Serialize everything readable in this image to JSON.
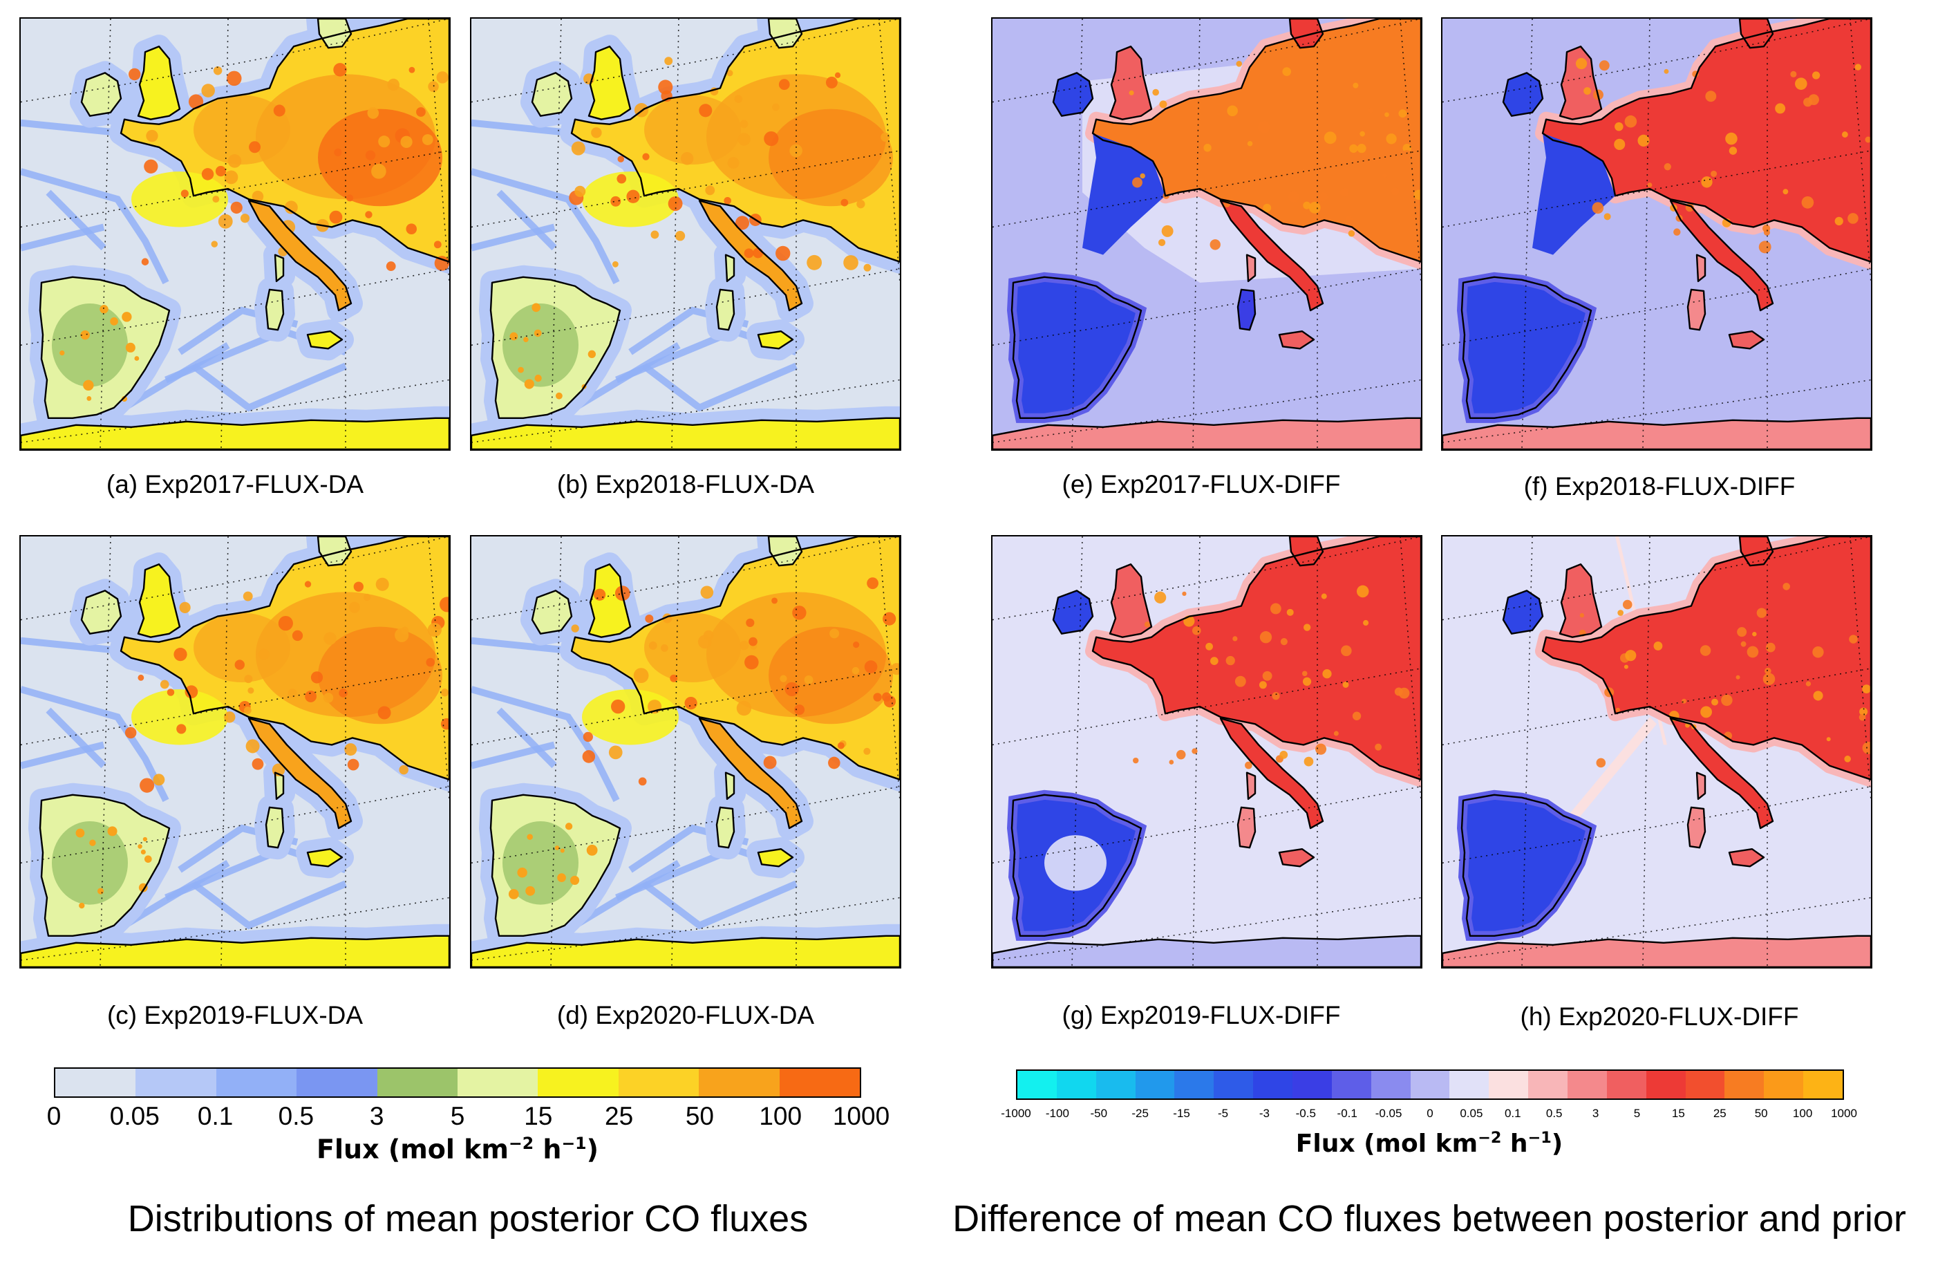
{
  "panels": [
    {
      "id": "a",
      "caption": "(a) Exp2017-FLUX-DA",
      "scheme": "da",
      "variant": "2017"
    },
    {
      "id": "b",
      "caption": "(b) Exp2018-FLUX-DA",
      "scheme": "da",
      "variant": "2018"
    },
    {
      "id": "c",
      "caption": "(c) Exp2019-FLUX-DA",
      "scheme": "da",
      "variant": "2019"
    },
    {
      "id": "d",
      "caption": "(d) Exp2020-FLUX-DA",
      "scheme": "da",
      "variant": "2020"
    },
    {
      "id": "e",
      "caption": "(e) Exp2017-FLUX-DIFF",
      "scheme": "diff",
      "variant": "2017"
    },
    {
      "id": "f",
      "caption": "(f) Exp2018-FLUX-DIFF",
      "scheme": "diff",
      "variant": "2018"
    },
    {
      "id": "g",
      "caption": "(g) Exp2019-FLUX-DIFF",
      "scheme": "diff",
      "variant": "2019"
    },
    {
      "id": "h",
      "caption": "(h) Exp2020-FLUX-DIFF",
      "scheme": "diff",
      "variant": "2020"
    }
  ],
  "left_colorbar": {
    "ticks": [
      "0",
      "0.05",
      "0.1",
      "0.5",
      "3",
      "5",
      "15",
      "25",
      "50",
      "100",
      "1000"
    ],
    "colors": [
      "#dbe3ef",
      "#b5c8f7",
      "#92b0f7",
      "#7a96f2",
      "#9cc46a",
      "#e4f3a3",
      "#f7f21f",
      "#fcd226",
      "#f8a31c",
      "#f76a14"
    ],
    "label_main": "Flux (mol km",
    "label_exp1": "−2",
    "label_mid": " h",
    "label_exp2": "−1",
    "label_end": ")"
  },
  "right_colorbar": {
    "ticks": [
      "-1000",
      "-100",
      "-50",
      "-25",
      "-15",
      "-5",
      "-3",
      "-0.5",
      "-0.1",
      "-0.05",
      "0",
      "0.05",
      "0.1",
      "0.5",
      "3",
      "5",
      "15",
      "25",
      "50",
      "100",
      "1000"
    ],
    "colors": [
      "#13f0ef",
      "#11d7ef",
      "#19bbee",
      "#2199ec",
      "#2b79ea",
      "#2e5be8",
      "#2f45e6",
      "#3a3ee5",
      "#5e5ee8",
      "#8a8bef",
      "#b9baf3",
      "#e1e1f8",
      "#fbe0e0",
      "#f8b6b8",
      "#f4898c",
      "#f05f60",
      "#ed3a36",
      "#f24f2e",
      "#f77c22",
      "#fb9a19",
      "#fdb315"
    ],
    "label_main": "Flux (mol km",
    "label_exp1": "−2",
    "label_mid": " h",
    "label_exp2": "−1",
    "label_end": ")"
  },
  "titles": {
    "left": "Distributions of mean posterior CO fluxes",
    "right": "Difference of mean CO fluxes between posterior and prior"
  }
}
